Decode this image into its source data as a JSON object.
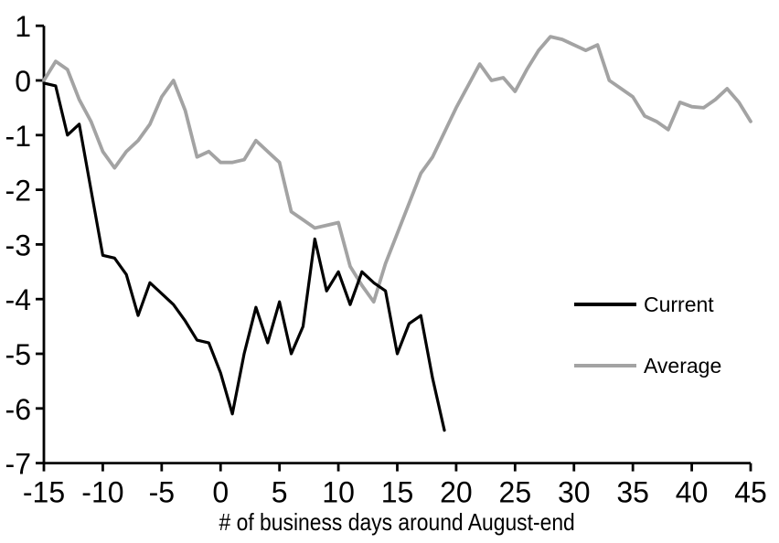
{
  "chart_data": {
    "type": "line",
    "title": "",
    "xlabel": "# of business days around August-end",
    "ylabel": "",
    "xlim": [
      -15,
      45
    ],
    "ylim": [
      -7,
      1
    ],
    "x_ticks": [
      -15,
      -10,
      -5,
      0,
      5,
      10,
      15,
      20,
      25,
      30,
      35,
      40,
      45
    ],
    "y_ticks": [
      1,
      0,
      -1,
      -2,
      -3,
      -4,
      -5,
      -6,
      -7
    ],
    "grid": false,
    "axis_color": "#000000",
    "legend": {
      "position": "right-middle",
      "items": [
        {
          "label": "Current",
          "color": "#000000"
        },
        {
          "label": "Average",
          "color": "#a3a3a3"
        }
      ]
    },
    "series": [
      {
        "name": "Current",
        "color": "#000000",
        "width": 3.2,
        "x": [
          -15,
          -14,
          -13,
          -12,
          -11,
          -10,
          -9,
          -8,
          -7,
          -6,
          -5,
          -4,
          -3,
          -2,
          -1,
          0,
          1,
          2,
          3,
          4,
          5,
          6,
          7,
          8,
          9,
          10,
          11,
          12,
          13,
          14,
          15,
          16,
          17,
          18,
          19
        ],
        "values": [
          -0.05,
          -0.1,
          -1.0,
          -0.8,
          -2.0,
          -3.2,
          -3.25,
          -3.55,
          -4.3,
          -3.7,
          -3.9,
          -4.1,
          -4.4,
          -4.75,
          -4.8,
          -5.35,
          -6.1,
          -5.0,
          -4.15,
          -4.8,
          -4.05,
          -5.0,
          -4.5,
          -2.9,
          -3.85,
          -3.5,
          -4.1,
          -3.5,
          -3.7,
          -3.85,
          -5.0,
          -4.45,
          -4.3,
          -5.45,
          -6.4
        ]
      },
      {
        "name": "Average",
        "color": "#a3a3a3",
        "width": 3.8,
        "x": [
          -15,
          -14,
          -13,
          -12,
          -11,
          -10,
          -9,
          -8,
          -7,
          -6,
          -5,
          -4,
          -3,
          -2,
          -1,
          0,
          1,
          2,
          3,
          4,
          5,
          6,
          7,
          8,
          9,
          10,
          11,
          12,
          13,
          14,
          15,
          16,
          17,
          18,
          19,
          20,
          21,
          22,
          23,
          24,
          25,
          26,
          27,
          28,
          29,
          30,
          31,
          32,
          33,
          34,
          35,
          36,
          37,
          38,
          39,
          40,
          41,
          42,
          43,
          44,
          45
        ],
        "values": [
          0.0,
          0.35,
          0.2,
          -0.35,
          -0.75,
          -1.3,
          -1.6,
          -1.3,
          -1.1,
          -0.8,
          -0.3,
          0.0,
          -0.55,
          -1.4,
          -1.3,
          -1.5,
          -1.5,
          -1.45,
          -1.1,
          -1.3,
          -1.5,
          -2.4,
          -2.55,
          -2.7,
          -2.65,
          -2.6,
          -3.4,
          -3.75,
          -4.05,
          -3.35,
          -2.8,
          -2.25,
          -1.7,
          -1.4,
          -0.95,
          -0.5,
          -0.1,
          0.3,
          0.0,
          0.05,
          -0.2,
          0.2,
          0.55,
          0.8,
          0.75,
          0.65,
          0.55,
          0.65,
          0.0,
          -0.15,
          -0.3,
          -0.65,
          -0.75,
          -0.9,
          -0.4,
          -0.48,
          -0.5,
          -0.35,
          -0.15,
          -0.4,
          -0.75
        ]
      }
    ]
  }
}
